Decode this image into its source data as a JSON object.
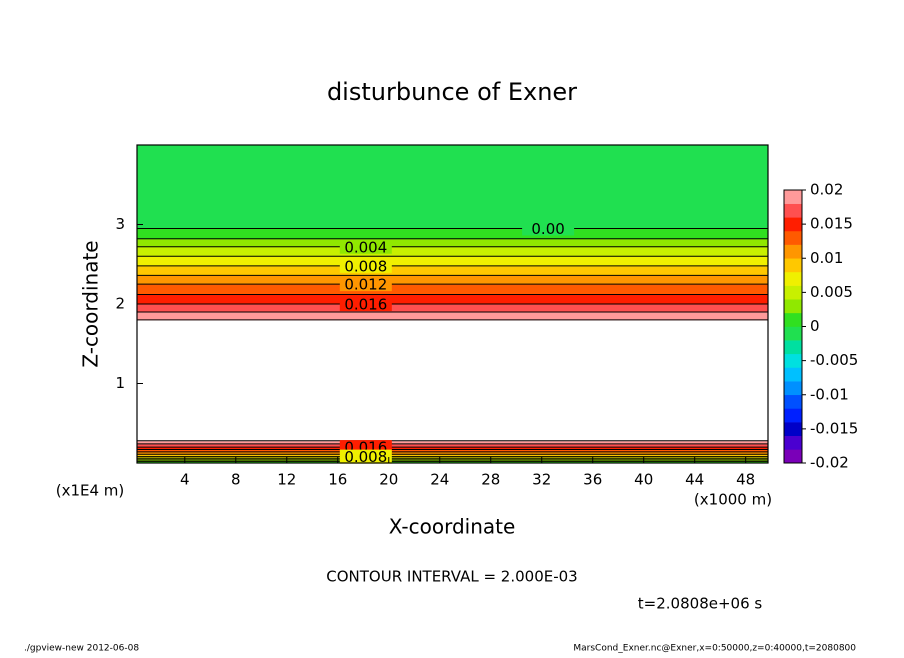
{
  "chart_data": {
    "type": "contour",
    "title": "disturbunce of Exner",
    "xlabel": "X-coordinate",
    "ylabel": "Z-coordinate",
    "xunit": "(x1000 m)",
    "yunit": "(x1E4 m)",
    "contour_interval": "CONTOUR INTERVAL = 2.000E-03",
    "time_label": "t=2.0808e+06 s",
    "footer_left": "./gpview-new  2012-06-08",
    "footer_right": "MarsCond_Exner.nc@Exner,x=0:50000,z=0:40000,t=2080800",
    "xlim": [
      0.25,
      49.75
    ],
    "ylim": [
      0,
      4
    ],
    "xticks": [
      4,
      8,
      12,
      16,
      20,
      24,
      28,
      32,
      36,
      40,
      44,
      48
    ],
    "yticks": [
      1,
      2,
      3
    ],
    "profile": {
      "z": [
        0,
        0.02,
        0.04,
        0.06,
        0.08,
        0.11,
        0.14,
        0.17,
        0.2,
        0.24,
        0.28,
        0.6,
        1.5,
        1.8,
        1.9,
        2.0,
        2.12,
        2.25,
        2.36,
        2.48,
        2.6,
        2.72,
        2.82,
        2.95,
        4
      ],
      "values": [
        0,
        0.002,
        0.004,
        0.006,
        0.008,
        0.01,
        0.012,
        0.014,
        0.016,
        0.018,
        0.02,
        0.03,
        0.03,
        0.02,
        0.018,
        0.016,
        0.014,
        0.012,
        0.01,
        0.008,
        0.006,
        0.004,
        0.002,
        0,
        -0.001
      ]
    },
    "contours": [
      {
        "level": 0,
        "z": 2.95,
        "label": "0.00",
        "label_x": 32.5
      },
      {
        "level": 0.002,
        "z": 2.82
      },
      {
        "level": 0.004,
        "z": 2.72,
        "label": "0.004",
        "label_x": 18.2
      },
      {
        "level": 0.006,
        "z": 2.6
      },
      {
        "level": 0.008,
        "z": 2.48,
        "label": "0.008",
        "label_x": 18.2
      },
      {
        "level": 0.01,
        "z": 2.36
      },
      {
        "level": 0.012,
        "z": 2.25,
        "label": "0.012",
        "label_x": 18.2
      },
      {
        "level": 0.014,
        "z": 2.12
      },
      {
        "level": 0.016,
        "z": 2.0,
        "label": "0.016",
        "label_x": 18.2
      },
      {
        "level": 0.018,
        "z": 1.9
      },
      {
        "level": 0.02,
        "z": 1.8
      },
      {
        "level": 0.02,
        "z": 0.28
      },
      {
        "level": 0.018,
        "z": 0.24
      },
      {
        "level": 0.016,
        "z": 0.2,
        "label": "0.016",
        "label_x": 18.2
      },
      {
        "level": 0.014,
        "z": 0.17
      },
      {
        "level": 0.012,
        "z": 0.14
      },
      {
        "level": 0.01,
        "z": 0.11
      },
      {
        "level": 0.008,
        "z": 0.08,
        "label": "0.008",
        "label_x": 18.2
      },
      {
        "level": 0.006,
        "z": 0.06
      },
      {
        "level": 0.004,
        "z": 0.04
      },
      {
        "level": 0.002,
        "z": 0.02
      }
    ],
    "colorbar": {
      "lim": [
        -0.02,
        0.02
      ],
      "levels": [
        -0.02,
        -0.018,
        -0.016,
        -0.014,
        -0.012,
        -0.01,
        -0.008,
        -0.006,
        -0.004,
        -0.002,
        0,
        0.002,
        0.004,
        0.006,
        0.008,
        0.01,
        0.012,
        0.014,
        0.016,
        0.018,
        0.02
      ],
      "colors": [
        "#7a00b8",
        "#4a00d0",
        "#0000c8",
        "#0020ff",
        "#0050ff",
        "#0090ff",
        "#00c0ff",
        "#00e0e0",
        "#00e0a0",
        "#20e050",
        "#30e020",
        "#90e800",
        "#c8f000",
        "#f0f000",
        "#ffc800",
        "#ff9600",
        "#ff5a00",
        "#ff1e00",
        "#ff5050",
        "#ff9a9a"
      ],
      "ticks": [
        0.02,
        0.015,
        0.01,
        0.005,
        0,
        -0.005,
        -0.01,
        -0.015,
        -0.02
      ]
    }
  }
}
